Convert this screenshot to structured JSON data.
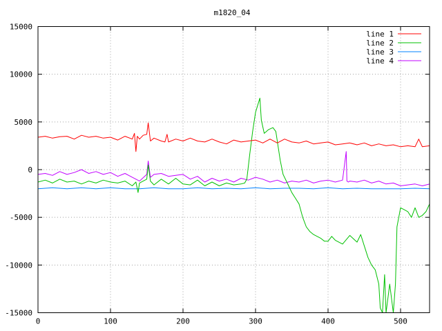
{
  "chart_data": {
    "type": "line",
    "title": "m1820_04",
    "xlabel": "",
    "ylabel": "",
    "xlim": [
      0,
      540
    ],
    "ylim": [
      -15000,
      15000
    ],
    "xticks": [
      0,
      100,
      200,
      300,
      400,
      500
    ],
    "yticks": [
      -15000,
      -10000,
      -5000,
      0,
      5000,
      10000,
      15000
    ],
    "grid": true,
    "legend_position": "top-right",
    "series": [
      {
        "name": "line 1",
        "color": "#ff0000",
        "x": [
          0,
          10,
          20,
          30,
          40,
          50,
          60,
          70,
          80,
          90,
          100,
          110,
          120,
          130,
          133,
          135,
          137,
          140,
          145,
          150,
          152,
          155,
          160,
          170,
          175,
          178,
          180,
          190,
          200,
          210,
          220,
          230,
          240,
          250,
          260,
          270,
          280,
          290,
          300,
          310,
          320,
          330,
          340,
          350,
          360,
          370,
          380,
          390,
          400,
          410,
          420,
          430,
          440,
          450,
          460,
          470,
          480,
          490,
          500,
          510,
          520,
          525,
          530,
          540
        ],
        "y": [
          3400,
          3500,
          3300,
          3450,
          3500,
          3200,
          3600,
          3400,
          3500,
          3300,
          3400,
          3100,
          3500,
          3200,
          3800,
          1900,
          3500,
          3200,
          3600,
          3700,
          4900,
          3000,
          3300,
          3000,
          2900,
          3700,
          2900,
          3200,
          3000,
          3300,
          3000,
          2900,
          3200,
          2900,
          2700,
          3100,
          2900,
          3000,
          3100,
          2800,
          3200,
          2800,
          3200,
          2900,
          2800,
          3000,
          2700,
          2800,
          2900,
          2600,
          2700,
          2800,
          2600,
          2800,
          2500,
          2700,
          2500,
          2600,
          2400,
          2500,
          2400,
          3200,
          2400,
          2500
        ]
      },
      {
        "name": "line 2",
        "color": "#00c000",
        "x": [
          0,
          10,
          20,
          30,
          40,
          50,
          60,
          70,
          80,
          90,
          100,
          110,
          120,
          130,
          135,
          138,
          140,
          145,
          150,
          152,
          155,
          160,
          170,
          180,
          190,
          200,
          210,
          220,
          230,
          240,
          250,
          260,
          270,
          280,
          285,
          288,
          292,
          296,
          300,
          304,
          306,
          308,
          312,
          318,
          324,
          328,
          334,
          338,
          345,
          350,
          355,
          360,
          365,
          370,
          375,
          380,
          385,
          390,
          395,
          400,
          405,
          410,
          420,
          430,
          440,
          445,
          450,
          455,
          460,
          465,
          470,
          472,
          475,
          478,
          480,
          485,
          490,
          493,
          495,
          500,
          505,
          510,
          515,
          520,
          525,
          530,
          535,
          540
        ],
        "y": [
          -1300,
          -1100,
          -1400,
          -1000,
          -1300,
          -1200,
          -1500,
          -1200,
          -1400,
          -1100,
          -1300,
          -1400,
          -1200,
          -1700,
          -1300,
          -2400,
          -1400,
          -1200,
          -1000,
          500,
          -1200,
          -1600,
          -1000,
          -1500,
          -900,
          -1500,
          -1600,
          -1100,
          -1700,
          -1300,
          -1700,
          -1400,
          -1600,
          -1500,
          -1400,
          -1000,
          1600,
          4000,
          6000,
          7000,
          7500,
          5200,
          3800,
          4200,
          4400,
          4000,
          1000,
          -500,
          -1600,
          -2400,
          -3000,
          -3600,
          -5000,
          -6000,
          -6500,
          -6800,
          -7000,
          -7200,
          -7500,
          -7500,
          -7000,
          -7400,
          -7800,
          -6900,
          -7600,
          -6800,
          -8000,
          -9200,
          -10000,
          -10500,
          -12000,
          -14500,
          -15000,
          -11000,
          -15000,
          -12000,
          -15000,
          -12000,
          -6000,
          -4000,
          -4200,
          -4400,
          -5000,
          -4000,
          -5000,
          -4800,
          -4400,
          -3600
        ]
      },
      {
        "name": "line 3",
        "color": "#0080ff",
        "x": [
          0,
          20,
          40,
          60,
          80,
          100,
          120,
          140,
          160,
          180,
          200,
          220,
          240,
          260,
          280,
          300,
          320,
          340,
          360,
          380,
          400,
          420,
          440,
          460,
          480,
          500,
          520,
          540
        ],
        "y": [
          -2000,
          -1900,
          -2000,
          -1900,
          -2000,
          -1900,
          -2000,
          -2000,
          -1900,
          -2000,
          -2000,
          -1900,
          -2000,
          -1950,
          -2000,
          -1900,
          -2000,
          -1950,
          -1950,
          -2000,
          -1900,
          -2000,
          -1950,
          -2000,
          -2000,
          -2000,
          -1950,
          -2000
        ]
      },
      {
        "name": "line 4",
        "color": "#c000ff",
        "x": [
          0,
          10,
          20,
          30,
          40,
          50,
          60,
          70,
          80,
          90,
          100,
          110,
          120,
          130,
          140,
          150,
          152,
          155,
          160,
          170,
          180,
          190,
          200,
          210,
          220,
          230,
          240,
          250,
          260,
          270,
          280,
          290,
          300,
          310,
          320,
          330,
          340,
          350,
          360,
          370,
          380,
          390,
          400,
          410,
          420,
          425,
          426,
          428,
          430,
          440,
          450,
          460,
          470,
          480,
          490,
          500,
          510,
          520,
          530,
          540
        ],
        "y": [
          -500,
          -400,
          -600,
          -200,
          -500,
          -300,
          0,
          -400,
          -200,
          -500,
          -300,
          -700,
          -400,
          -800,
          -1200,
          -500,
          900,
          -800,
          -500,
          -400,
          -700,
          -600,
          -500,
          -1000,
          -700,
          -1300,
          -900,
          -1200,
          -1000,
          -1300,
          -900,
          -1100,
          -800,
          -1000,
          -1300,
          -1100,
          -1400,
          -1200,
          -1300,
          -1100,
          -1400,
          -1200,
          -1100,
          -1300,
          -1100,
          1900,
          -1200,
          -1300,
          -1200,
          -1300,
          -1100,
          -1400,
          -1200,
          -1500,
          -1400,
          -1700,
          -1600,
          -1500,
          -1700,
          -1500
        ]
      }
    ]
  }
}
